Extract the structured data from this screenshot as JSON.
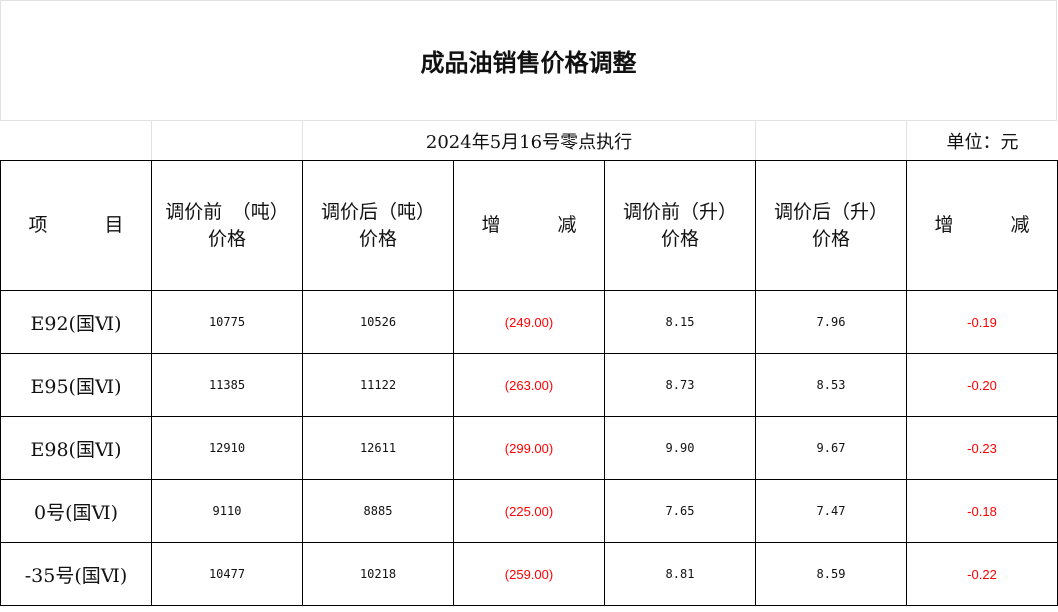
{
  "title": "成品油销售价格调整",
  "date_note": "2024年5月16号零点执行",
  "unit": "单位：元",
  "headers": [
    "项　　目",
    "调价前　（吨）价格",
    "调价后（吨）价格",
    "增　　减",
    "调价前（升）价格",
    "调价后（升）价格",
    "增　　减"
  ],
  "header_lines": [
    [
      "项　　　目"
    ],
    [
      "调价前　（吨）",
      "价格"
    ],
    [
      "调价后（吨）",
      "价格"
    ],
    [
      "增　　　减"
    ],
    [
      "调价前（升）",
      "价格"
    ],
    [
      "调价后（升）",
      "价格"
    ],
    [
      "增　　　减"
    ]
  ],
  "rows": [
    {
      "item": "E92(国Ⅵ)",
      "before_ton": "10775",
      "after_ton": "10526",
      "change_ton": "(249.00)",
      "before_liter": "8.15",
      "after_liter": "7.96",
      "change_liter": "-0.19"
    },
    {
      "item": "E95(国Ⅵ)",
      "before_ton": "11385",
      "after_ton": "11122",
      "change_ton": "(263.00)",
      "before_liter": "8.73",
      "after_liter": "8.53",
      "change_liter": "-0.20"
    },
    {
      "item": "E98(国Ⅵ)",
      "before_ton": "12910",
      "after_ton": "12611",
      "change_ton": "(299.00)",
      "before_liter": "9.90",
      "after_liter": "9.67",
      "change_liter": "-0.23"
    },
    {
      "item": "0号(国Ⅵ)",
      "before_ton": "9110",
      "after_ton": "8885",
      "change_ton": "(225.00)",
      "before_liter": "7.65",
      "after_liter": "7.47",
      "change_liter": "-0.18"
    },
    {
      "item": "-35号(国Ⅵ)",
      "before_ton": "10477",
      "after_ton": "10218",
      "change_ton": "(259.00)",
      "before_liter": "8.81",
      "after_liter": "8.59",
      "change_liter": "-0.22"
    }
  ],
  "colors": {
    "negative": "#ff0000",
    "border": "#000000",
    "gridline": "#e2e2e2"
  }
}
